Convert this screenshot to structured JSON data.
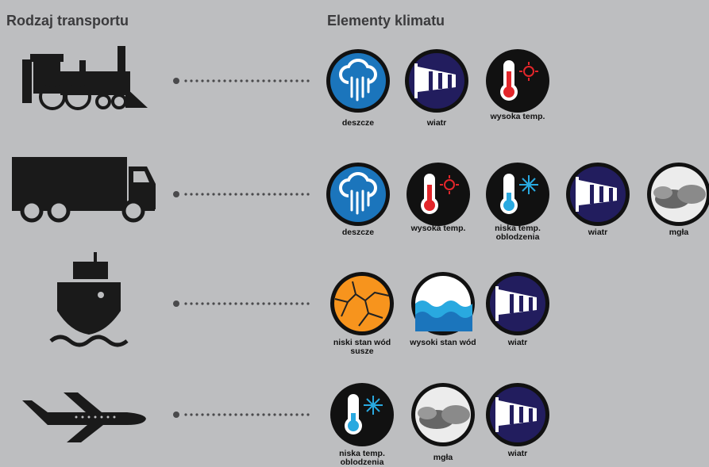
{
  "header": {
    "transport": "Rodzaj transportu",
    "climate": "Elementy klimatu"
  },
  "rows": [
    {
      "elements": [
        [
          "deszcze"
        ],
        [
          "wiatr"
        ],
        [
          "wysoka temp."
        ]
      ]
    },
    {
      "elements": [
        [
          "deszcze"
        ],
        [
          "wysoka temp."
        ],
        [
          "niska temp.",
          "oblodzenia"
        ],
        [
          "wiatr"
        ],
        [
          "mgła"
        ]
      ]
    },
    {
      "elements": [
        [
          "niski stan wód",
          "susze"
        ],
        [
          "wysoki stan wód"
        ],
        [
          "wiatr"
        ]
      ]
    },
    {
      "elements": [
        [
          "niska temp.",
          "oblodzenia"
        ],
        [
          "mgła"
        ],
        [
          "wiatr"
        ]
      ]
    }
  ]
}
